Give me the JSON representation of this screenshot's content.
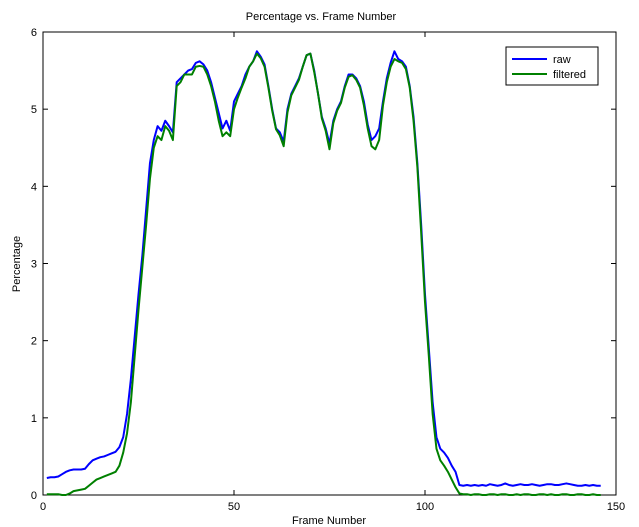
{
  "chart_data": {
    "type": "line",
    "title": "Percentage vs. Frame Number",
    "xlabel": "Frame Number",
    "ylabel": "Percentage",
    "xlim": [
      0,
      150
    ],
    "ylim": [
      0,
      6
    ],
    "xticks": [
      "0",
      "50",
      "100",
      "150"
    ],
    "yticks": [
      "0",
      "1",
      "2",
      "3",
      "4",
      "5",
      "6"
    ],
    "grid": false,
    "legend": "top-right",
    "x": [
      1,
      2,
      3,
      4,
      5,
      6,
      7,
      8,
      9,
      10,
      11,
      12,
      13,
      14,
      15,
      16,
      17,
      18,
      19,
      20,
      21,
      22,
      23,
      24,
      25,
      26,
      27,
      28,
      29,
      30,
      31,
      32,
      33,
      34,
      35,
      36,
      37,
      38,
      39,
      40,
      41,
      42,
      43,
      44,
      45,
      46,
      47,
      48,
      49,
      50,
      51,
      52,
      53,
      54,
      55,
      56,
      57,
      58,
      59,
      60,
      61,
      62,
      63,
      64,
      65,
      66,
      67,
      68,
      69,
      70,
      71,
      72,
      73,
      74,
      75,
      76,
      77,
      78,
      79,
      80,
      81,
      82,
      83,
      84,
      85,
      86,
      87,
      88,
      89,
      90,
      91,
      92,
      93,
      94,
      95,
      96,
      97,
      98,
      99,
      100,
      101,
      102,
      103,
      104,
      105,
      106,
      107,
      108,
      109,
      110,
      111,
      112,
      113,
      114,
      115,
      116,
      117,
      118,
      119,
      120,
      121,
      122,
      123,
      124,
      125,
      126,
      127,
      128,
      129,
      130,
      131,
      132,
      133,
      134,
      135,
      136,
      137,
      138,
      139,
      140,
      141,
      142,
      143,
      144,
      145,
      146
    ],
    "series": [
      {
        "name": "raw",
        "color": "#0000ff",
        "values": [
          0.22,
          0.23,
          0.23,
          0.24,
          0.27,
          0.3,
          0.32,
          0.33,
          0.33,
          0.33,
          0.34,
          0.4,
          0.45,
          0.47,
          0.49,
          0.5,
          0.52,
          0.54,
          0.56,
          0.62,
          0.75,
          1.05,
          1.5,
          2.05,
          2.6,
          3.1,
          3.7,
          4.3,
          4.6,
          4.78,
          4.72,
          4.85,
          4.78,
          4.7,
          5.35,
          5.4,
          5.45,
          5.5,
          5.52,
          5.6,
          5.62,
          5.58,
          5.5,
          5.35,
          5.15,
          4.95,
          4.75,
          4.85,
          4.72,
          5.1,
          5.2,
          5.3,
          5.45,
          5.55,
          5.62,
          5.75,
          5.68,
          5.58,
          5.3,
          5.0,
          4.75,
          4.7,
          4.58,
          5.0,
          5.2,
          5.3,
          5.4,
          5.55,
          5.7,
          5.72,
          5.5,
          5.2,
          4.9,
          4.75,
          4.55,
          4.85,
          5.0,
          5.1,
          5.3,
          5.45,
          5.45,
          5.4,
          5.3,
          5.1,
          4.8,
          4.6,
          4.65,
          4.75,
          5.1,
          5.4,
          5.6,
          5.75,
          5.65,
          5.62,
          5.55,
          5.3,
          4.9,
          4.3,
          3.5,
          2.6,
          1.9,
          1.2,
          0.75,
          0.6,
          0.55,
          0.48,
          0.38,
          0.3,
          0.13,
          0.12,
          0.13,
          0.12,
          0.13,
          0.12,
          0.13,
          0.12,
          0.14,
          0.13,
          0.12,
          0.13,
          0.15,
          0.13,
          0.12,
          0.13,
          0.14,
          0.13,
          0.13,
          0.14,
          0.13,
          0.12,
          0.13,
          0.14,
          0.14,
          0.13,
          0.13,
          0.14,
          0.15,
          0.14,
          0.13,
          0.12,
          0.12,
          0.13,
          0.12,
          0.13,
          0.12,
          0.12
        ]
      },
      {
        "name": "filtered",
        "color": "#008000",
        "values": [
          0.01,
          0.01,
          0.01,
          0.01,
          0.0,
          0.0,
          0.02,
          0.05,
          0.06,
          0.07,
          0.08,
          0.12,
          0.16,
          0.2,
          0.22,
          0.24,
          0.26,
          0.28,
          0.3,
          0.38,
          0.55,
          0.8,
          1.2,
          1.8,
          2.4,
          2.95,
          3.5,
          4.1,
          4.5,
          4.65,
          4.6,
          4.78,
          4.72,
          4.6,
          5.3,
          5.35,
          5.45,
          5.45,
          5.45,
          5.55,
          5.56,
          5.55,
          5.45,
          5.3,
          5.1,
          4.85,
          4.65,
          4.7,
          4.65,
          5.0,
          5.15,
          5.28,
          5.4,
          5.55,
          5.62,
          5.72,
          5.66,
          5.55,
          5.28,
          4.98,
          4.74,
          4.66,
          4.52,
          4.96,
          5.18,
          5.28,
          5.38,
          5.55,
          5.7,
          5.72,
          5.48,
          5.2,
          4.88,
          4.72,
          4.48,
          4.82,
          4.98,
          5.08,
          5.28,
          5.42,
          5.44,
          5.38,
          5.28,
          5.05,
          4.75,
          4.52,
          4.48,
          4.6,
          5.05,
          5.35,
          5.55,
          5.65,
          5.62,
          5.6,
          5.52,
          5.28,
          4.85,
          4.25,
          3.4,
          2.5,
          1.8,
          1.05,
          0.6,
          0.45,
          0.38,
          0.3,
          0.2,
          0.1,
          0.02,
          0.01,
          0.01,
          0.0,
          0.01,
          0.01,
          0.0,
          0.0,
          0.01,
          0.01,
          0.0,
          0.01,
          0.01,
          0.0,
          0.0,
          0.01,
          0.0,
          0.01,
          0.01,
          0.0,
          0.0,
          0.01,
          0.01,
          0.0,
          0.01,
          0.0,
          0.0,
          0.01,
          0.01,
          0.0,
          0.0,
          0.01,
          0.01,
          0.0,
          0.0,
          0.01,
          0.0,
          0.0
        ]
      }
    ]
  }
}
